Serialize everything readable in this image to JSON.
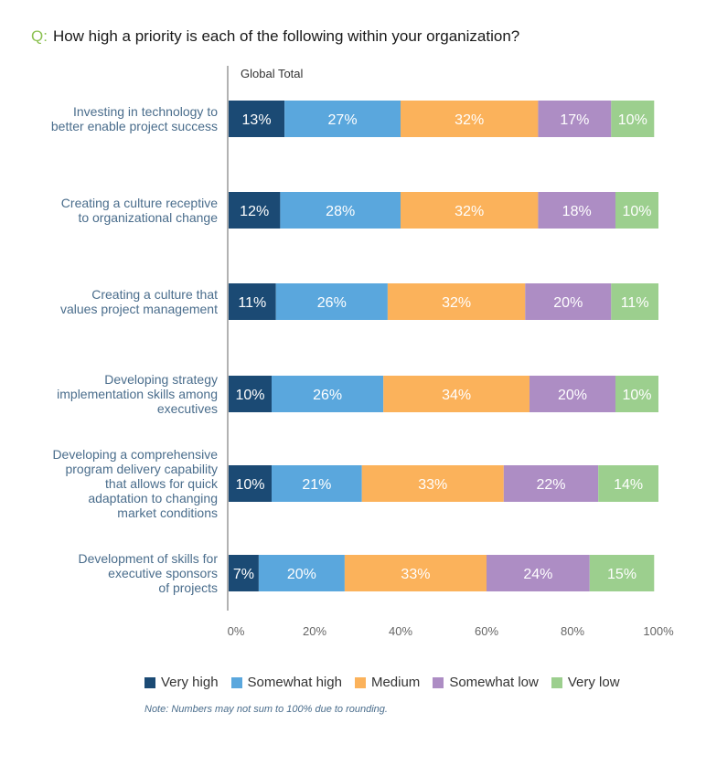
{
  "question": {
    "prefix": "Q:",
    "text": "How high a priority is each of the following within your organization?"
  },
  "chart_data": {
    "type": "bar",
    "orientation": "horizontal",
    "stacked": true,
    "title": "How high a priority is each of the following within your organization?",
    "subtitle": "Global Total",
    "categories": [
      "Investing in technology to better enable project success",
      "Creating a culture receptive to organizational change",
      "Creating a culture that values project management",
      "Developing strategy implementation skills among executives",
      "Developing a comprehensive program delivery capability that allows for quick adaptation to changing market conditions",
      "Development of skills for executive sponsors of projects"
    ],
    "category_lines": [
      [
        "Investing in technology to",
        "better enable project success"
      ],
      [
        "Creating a culture receptive",
        "to organizational change"
      ],
      [
        "Creating a culture that",
        "values project management"
      ],
      [
        "Developing strategy",
        "implementation skills among",
        "executives"
      ],
      [
        "Developing a comprehensive",
        "program delivery capability",
        "that allows for quick",
        "adaptation to changing",
        "market conditions"
      ],
      [
        "Development of skills for",
        "executive sponsors",
        "of projects"
      ]
    ],
    "series": [
      {
        "name": "Very high",
        "color": "#1b4a74",
        "values": [
          13,
          12,
          11,
          10,
          10,
          7
        ]
      },
      {
        "name": "Somewhat high",
        "color": "#5aa7dd",
        "values": [
          27,
          28,
          26,
          26,
          21,
          20
        ]
      },
      {
        "name": "Medium",
        "color": "#fbb25b",
        "values": [
          32,
          32,
          32,
          34,
          33,
          33
        ]
      },
      {
        "name": "Somewhat low",
        "color": "#ad8dc4",
        "values": [
          17,
          18,
          20,
          20,
          22,
          24
        ]
      },
      {
        "name": "Very low",
        "color": "#9ccf8e",
        "values": [
          10,
          10,
          11,
          10,
          14,
          15
        ]
      }
    ],
    "xlim": [
      0,
      100
    ],
    "xticks": [
      "0%",
      "20%",
      "40%",
      "60%",
      "80%",
      "100%"
    ],
    "xlabel": "",
    "ylabel": "",
    "grid": false,
    "legend_position": "bottom",
    "value_suffix": "%"
  },
  "legend": {
    "items": [
      "Very high",
      "Somewhat high",
      "Medium",
      "Somewhat low",
      "Very low"
    ]
  },
  "note": "Note: Numbers may not sum to 100% due to rounding."
}
